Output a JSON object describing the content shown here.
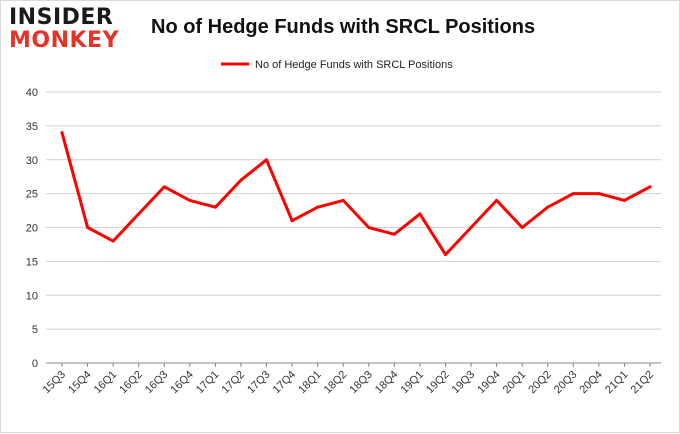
{
  "brand": {
    "line1": "INSIDER",
    "line2": "MONKEY"
  },
  "chart_data": {
    "type": "line",
    "title": "No of Hedge Funds with SRCL Positions",
    "xlabel": "",
    "ylabel": "",
    "categories": [
      "15Q3",
      "15Q4",
      "16Q1",
      "16Q2",
      "16Q3",
      "16Q4",
      "17Q1",
      "17Q2",
      "17Q3",
      "17Q4",
      "18Q1",
      "18Q2",
      "18Q3",
      "18Q4",
      "19Q1",
      "19Q2",
      "19Q3",
      "19Q4",
      "20Q1",
      "20Q2",
      "20Q3",
      "20Q4",
      "21Q1",
      "21Q2"
    ],
    "series": [
      {
        "name": "No of Hedge Funds with SRCL Positions",
        "color": "#ff0000",
        "values": [
          34,
          20,
          18,
          22,
          26,
          24,
          23,
          27,
          30,
          21,
          23,
          24,
          20,
          19,
          22,
          16,
          20,
          24,
          20,
          23,
          25,
          25,
          24,
          26
        ]
      }
    ],
    "ylim": [
      0,
      40
    ],
    "yticks": [
      0,
      5,
      10,
      15,
      20,
      25,
      30,
      35,
      40
    ],
    "grid": true,
    "legend_position": "top-center"
  }
}
